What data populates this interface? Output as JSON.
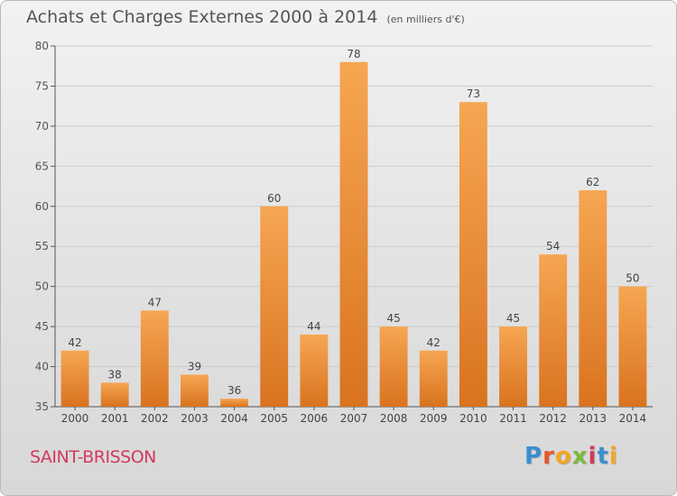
{
  "header": {
    "title": "Achats et Charges Externes 2000 à 2014",
    "subtitle": "(en milliers d'€)"
  },
  "footer": {
    "commune": "SAINT-BRISSON",
    "logo_text": "Proxiti"
  },
  "colors": {
    "bar_light": "#f6a652",
    "bar_dark": "#d9731f",
    "grid": "#cccccc",
    "commune": "#d23a5c"
  },
  "chart_data": {
    "type": "bar",
    "title": "Achats et Charges Externes 2000 à 2014",
    "subtitle": "(en milliers d'€)",
    "xlabel": "",
    "ylabel": "",
    "categories": [
      "2000",
      "2001",
      "2002",
      "2003",
      "2004",
      "2005",
      "2006",
      "2007",
      "2008",
      "2009",
      "2010",
      "2011",
      "2012",
      "2013",
      "2014"
    ],
    "values": [
      42,
      38,
      47,
      39,
      36,
      60,
      44,
      78,
      45,
      42,
      73,
      45,
      54,
      62,
      50
    ],
    "ylim": [
      35,
      80
    ],
    "yticks": [
      35,
      40,
      45,
      50,
      55,
      60,
      65,
      70,
      75,
      80
    ],
    "grid": true,
    "data_labels": true
  }
}
